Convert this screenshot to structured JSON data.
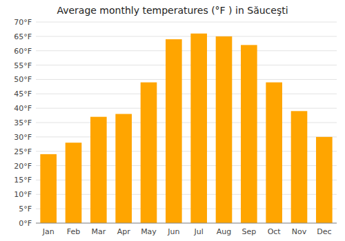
{
  "chart_data": {
    "type": "bar",
    "title": "Average monthly temperatures (°F ) in Săuceşti",
    "categories": [
      "Jan",
      "Feb",
      "Mar",
      "Apr",
      "May",
      "Jun",
      "Jul",
      "Aug",
      "Sep",
      "Oct",
      "Nov",
      "Dec"
    ],
    "values": [
      24,
      28,
      37,
      38,
      49,
      64,
      66,
      65,
      62,
      49,
      39,
      30
    ],
    "color": "#FFA500",
    "ylim": [
      0,
      70
    ],
    "yticks": [
      {
        "value": 0,
        "label": "0°F"
      },
      {
        "value": 5,
        "label": "5°F"
      },
      {
        "value": 10,
        "label": "10°F"
      },
      {
        "value": 15,
        "label": "15°F"
      },
      {
        "value": 20,
        "label": "20°F"
      },
      {
        "value": 25,
        "label": "25°F"
      },
      {
        "value": 30,
        "label": "30°F"
      },
      {
        "value": 35,
        "label": "35°F"
      },
      {
        "value": 40,
        "label": "40°F"
      },
      {
        "value": 45,
        "label": "45°F"
      },
      {
        "value": 50,
        "label": "50°F"
      },
      {
        "value": 55,
        "label": "55°F"
      },
      {
        "value": 60,
        "label": "60°F"
      },
      {
        "value": 65,
        "label": "65°F"
      },
      {
        "value": 70,
        "label": "70°F"
      }
    ],
    "grid": true
  }
}
